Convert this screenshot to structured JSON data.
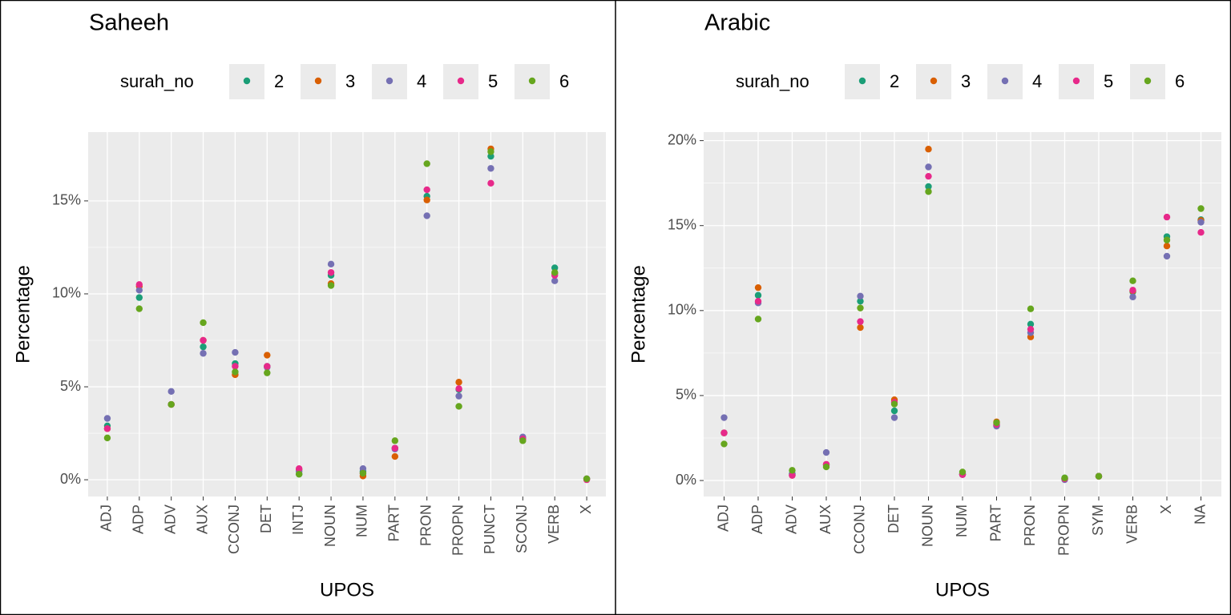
{
  "chart_data": [
    {
      "type": "scatter",
      "title": "Saheeh",
      "x_label": "UPOS",
      "y_label": "Percentage",
      "legend_title": "surah_no",
      "categories": [
        "ADJ",
        "ADP",
        "ADV",
        "AUX",
        "CCONJ",
        "DET",
        "INTJ",
        "NOUN",
        "NUM",
        "PART",
        "PRON",
        "PROPN",
        "PUNCT",
        "SCONJ",
        "VERB",
        "X"
      ],
      "ylim": [
        -0.9,
        18.7
      ],
      "yticks": [
        {
          "value": 0,
          "label": "0%"
        },
        {
          "value": 5,
          "label": "5%"
        },
        {
          "value": 10,
          "label": "10%"
        },
        {
          "value": 15,
          "label": "15%"
        }
      ],
      "grid": true,
      "series": [
        {
          "name": "2",
          "color": "#1b9e77",
          "values": [
            2.9,
            9.8,
            4.05,
            7.15,
            6.25,
            6.1,
            0.3,
            11.0,
            0.45,
            1.7,
            15.25,
            4.85,
            17.4,
            2.2,
            11.4,
            0.05
          ]
        },
        {
          "name": "3",
          "color": "#d95f02",
          "values": [
            2.75,
            10.4,
            4.05,
            7.5,
            5.65,
            6.7,
            0.55,
            10.55,
            0.2,
            1.25,
            15.05,
            5.25,
            17.8,
            2.2,
            11.1,
            0.05
          ]
        },
        {
          "name": "4",
          "color": "#7570b3",
          "values": [
            3.3,
            10.2,
            4.75,
            6.8,
            6.85,
            6.05,
            0.45,
            11.6,
            0.6,
            1.65,
            14.2,
            4.5,
            16.75,
            2.3,
            10.7,
            0.05
          ]
        },
        {
          "name": "5",
          "color": "#e7298a",
          "values": [
            2.75,
            10.5,
            4.05,
            7.5,
            6.1,
            6.1,
            0.6,
            11.15,
            0.35,
            1.7,
            15.6,
            4.9,
            15.95,
            2.2,
            11.0,
            0.0
          ]
        },
        {
          "name": "6",
          "color": "#66a61e",
          "values": [
            2.25,
            9.2,
            4.05,
            8.45,
            5.8,
            5.75,
            0.3,
            10.45,
            0.35,
            2.1,
            17.0,
            3.95,
            17.65,
            2.1,
            11.15,
            0.05
          ]
        }
      ]
    },
    {
      "type": "scatter",
      "title": "Arabic",
      "x_label": "UPOS",
      "y_label": "Percentage",
      "legend_title": "surah_no",
      "categories": [
        "ADJ",
        "ADP",
        "ADV",
        "AUX",
        "CCONJ",
        "DET",
        "NOUN",
        "NUM",
        "PART",
        "PRON",
        "PROPN",
        "SYM",
        "VERB",
        "X",
        "NA"
      ],
      "ylim": [
        -0.94,
        20.5
      ],
      "yticks": [
        {
          "value": 0,
          "label": "0%"
        },
        {
          "value": 5,
          "label": "5%"
        },
        {
          "value": 10,
          "label": "10%"
        },
        {
          "value": 15,
          "label": "15%"
        },
        {
          "value": 20,
          "label": "20%"
        }
      ],
      "grid": true,
      "series": [
        {
          "name": "2",
          "color": "#1b9e77",
          "values": [
            2.8,
            10.9,
            0.4,
            0.9,
            10.55,
            4.1,
            17.3,
            0.4,
            3.25,
            9.2,
            0.15,
            0.25,
            11.1,
            14.35,
            15.35
          ]
        },
        {
          "name": "3",
          "color": "#d95f02",
          "values": [
            2.8,
            11.35,
            0.3,
            0.95,
            9.0,
            4.75,
            19.5,
            0.35,
            3.45,
            8.45,
            0.1,
            0.25,
            11.15,
            13.8,
            15.3
          ]
        },
        {
          "name": "4",
          "color": "#7570b3",
          "values": [
            3.7,
            10.45,
            0.35,
            1.65,
            10.85,
            3.7,
            18.45,
            0.35,
            3.2,
            8.7,
            0.05,
            0.25,
            10.8,
            13.2,
            15.2
          ]
        },
        {
          "name": "5",
          "color": "#e7298a",
          "values": [
            2.8,
            10.55,
            0.3,
            0.95,
            9.35,
            4.6,
            17.9,
            0.35,
            3.3,
            8.9,
            0.1,
            0.25,
            11.2,
            15.5,
            14.6
          ]
        },
        {
          "name": "6",
          "color": "#66a61e",
          "values": [
            2.15,
            9.5,
            0.6,
            0.8,
            10.15,
            4.5,
            17.0,
            0.5,
            3.4,
            10.1,
            0.15,
            0.25,
            11.75,
            14.15,
            16.0
          ]
        }
      ]
    }
  ]
}
